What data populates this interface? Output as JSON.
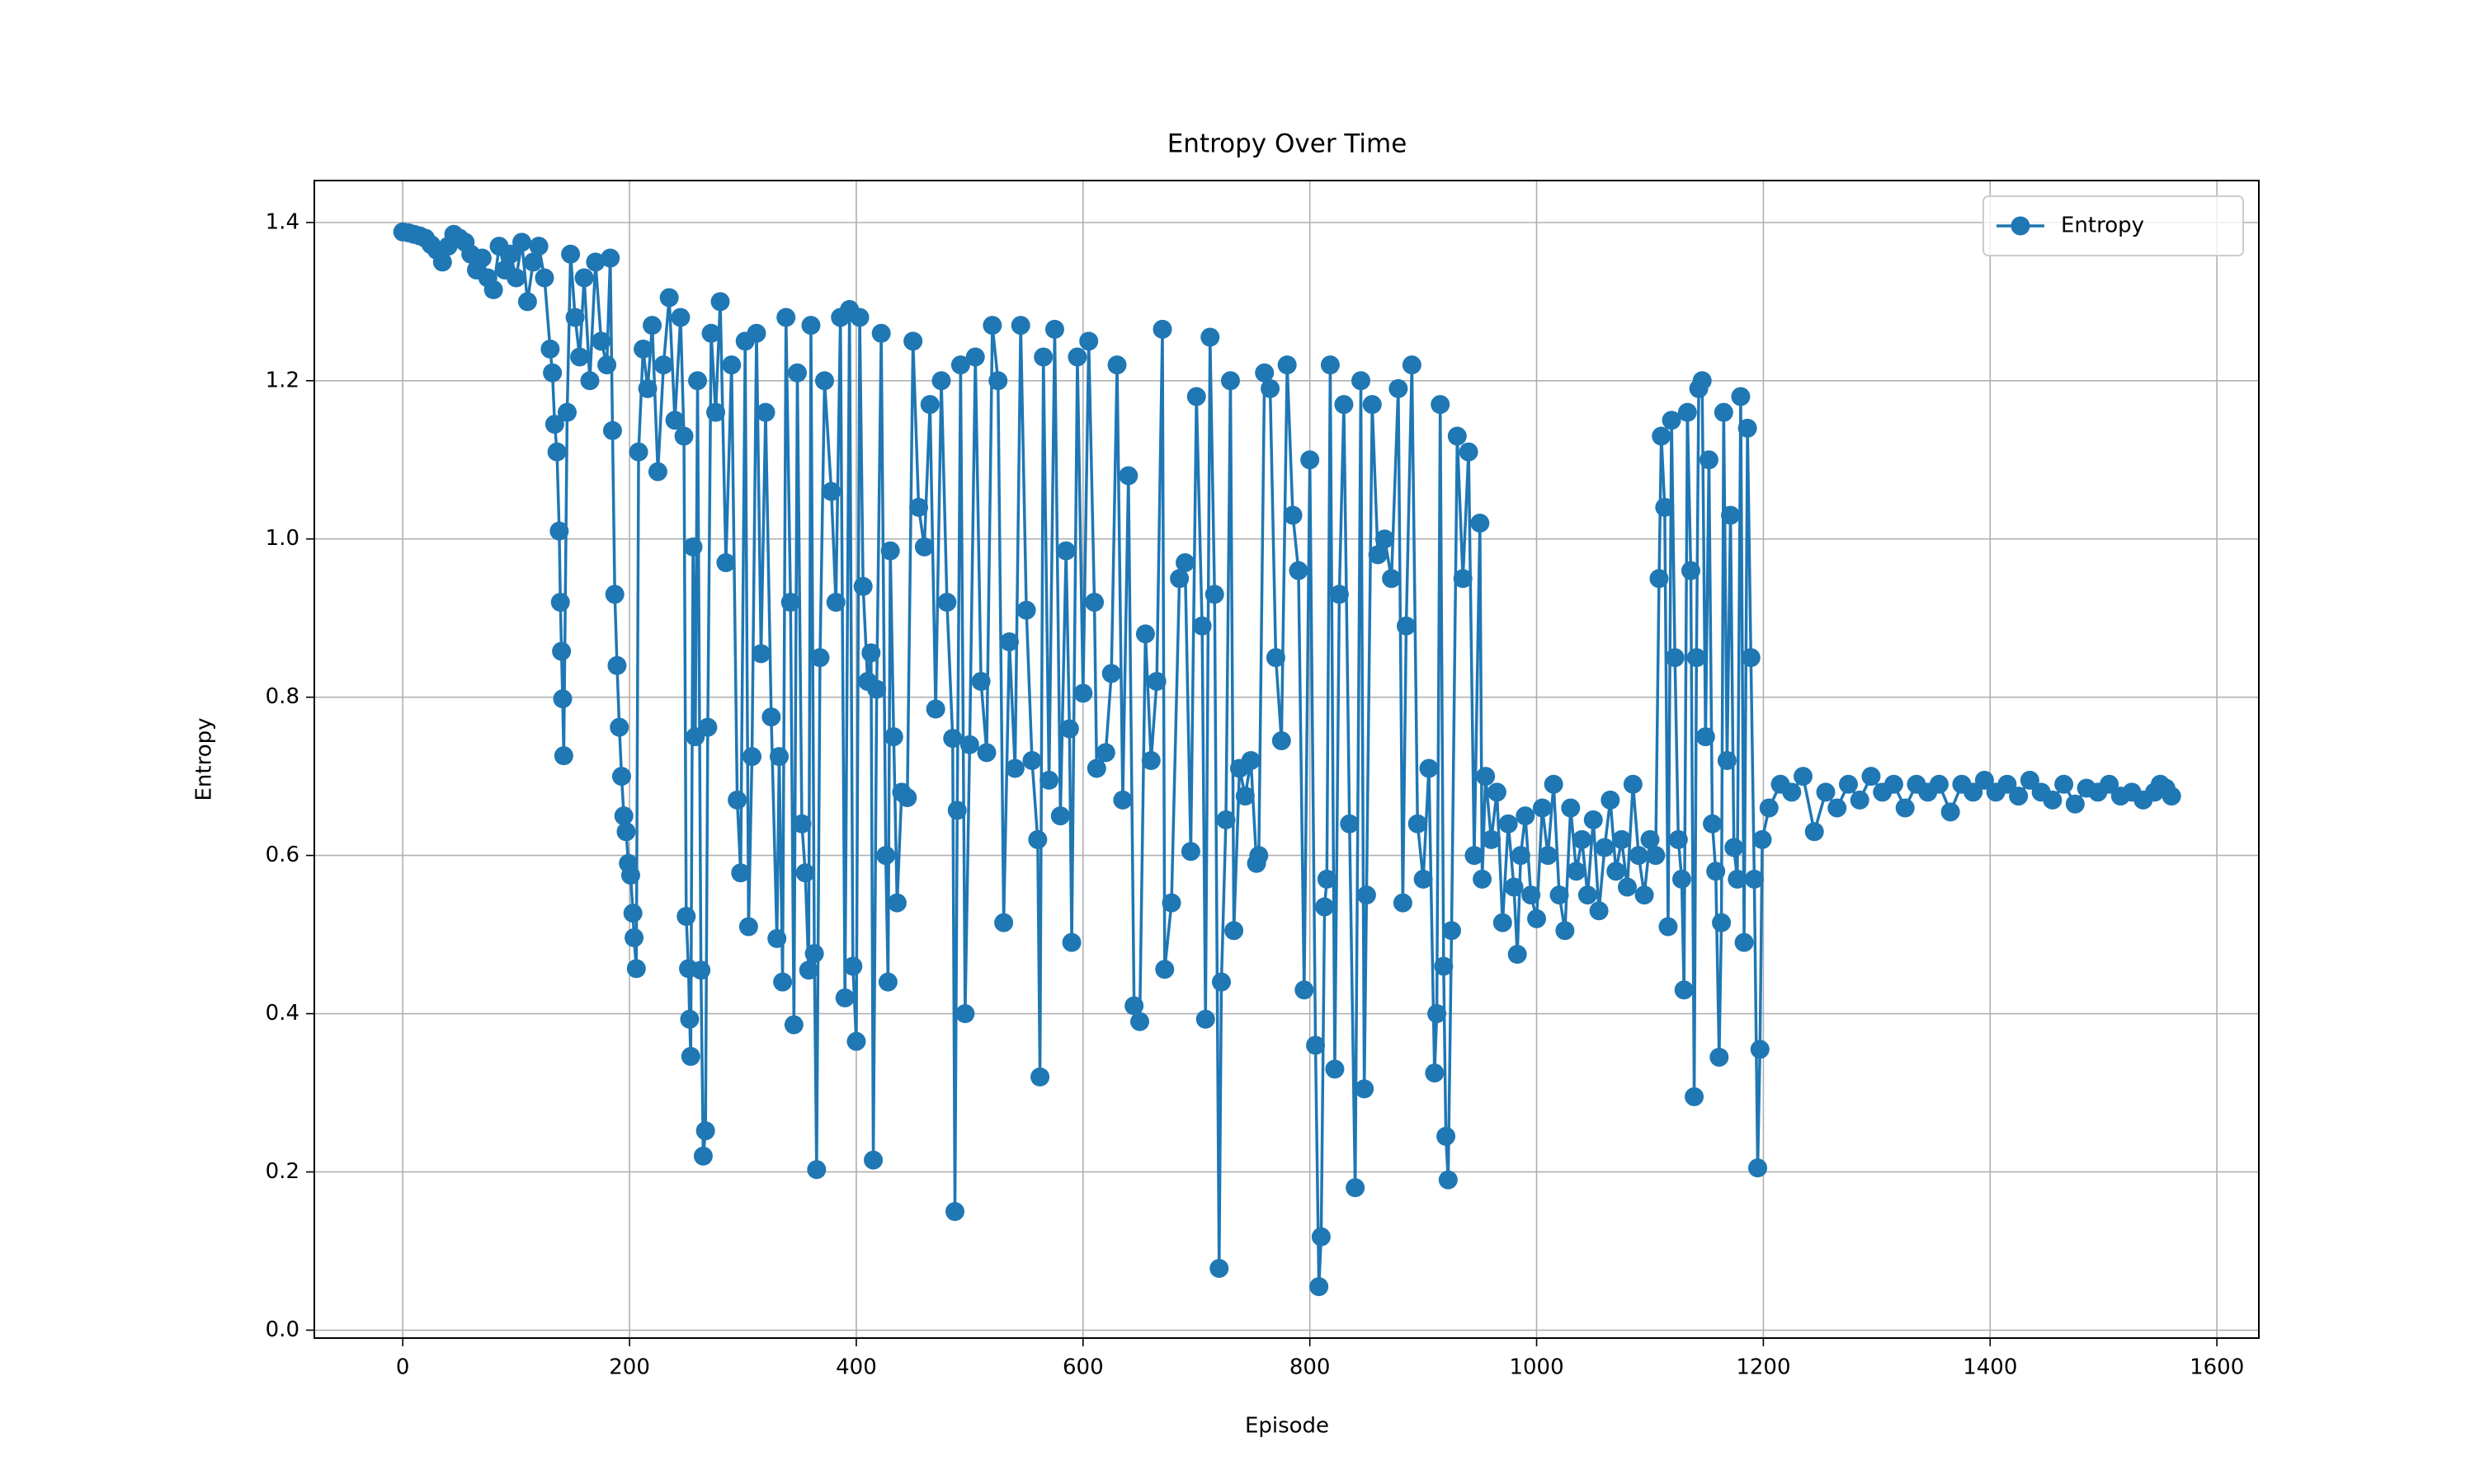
{
  "chart_data": {
    "type": "line",
    "title": "Entropy Over Time",
    "x_label": "Episode",
    "y_label": "Entropy",
    "x": [
      0,
      5,
      10,
      15,
      20,
      25,
      30,
      35,
      40,
      45,
      50,
      55,
      60,
      65,
      70,
      75,
      80,
      85,
      90,
      95,
      100,
      105,
      110,
      115,
      120,
      125,
      130,
      132,
      134,
      136,
      138,
      139,
      140,
      141,
      142,
      145,
      148,
      152,
      156,
      160,
      165,
      170,
      175,
      180,
      183,
      185,
      187,
      189,
      191,
      193,
      195,
      197,
      199,
      201,
      203,
      204,
      206,
      208,
      212,
      216,
      220,
      225,
      230,
      235,
      240,
      245,
      248,
      250,
      252,
      253,
      254,
      256,
      258,
      260,
      263,
      265,
      267,
      269,
      272,
      276,
      280,
      285,
      290,
      295,
      298,
      302,
      305,
      308,
      312,
      316,
      320,
      325,
      330,
      332,
      335,
      338,
      342,
      345,
      348,
      352,
      355,
      358,
      360,
      363,
      365,
      368,
      372,
      378,
      382,
      386,
      390,
      394,
      397,
      400,
      403,
      406,
      410,
      413,
      415,
      418,
      422,
      426,
      428,
      430,
      433,
      436,
      440,
      445,
      450,
      455,
      460,
      465,
      470,
      475,
      480,
      485,
      487,
      489,
      492,
      496,
      500,
      505,
      510,
      515,
      520,
      525,
      530,
      535,
      540,
      545,
      550,
      555,
      560,
      562,
      565,
      570,
      575,
      580,
      585,
      588,
      590,
      595,
      600,
      605,
      610,
      612,
      620,
      625,
      630,
      635,
      640,
      645,
      650,
      655,
      660,
      665,
      670,
      672,
      678,
      685,
      690,
      695,
      700,
      705,
      708,
      712,
      716,
      720,
      722,
      726,
      730,
      733,
      738,
      743,
      748,
      753,
      755,
      760,
      765,
      770,
      775,
      780,
      785,
      790,
      795,
      800,
      805,
      808,
      810,
      813,
      815,
      818,
      822,
      826,
      830,
      835,
      840,
      845,
      848,
      850,
      855,
      860,
      866,
      872,
      878,
      882,
      885,
      890,
      895,
      900,
      905,
      910,
      912,
      915,
      918,
      920,
      922,
      925,
      930,
      935,
      940,
      945,
      950,
      952,
      955,
      960,
      965,
      970,
      975,
      980,
      983,
      986,
      990,
      995,
      1000,
      1005,
      1010,
      1015,
      1020,
      1025,
      1030,
      1035,
      1040,
      1045,
      1050,
      1055,
      1060,
      1065,
      1070,
      1075,
      1080,
      1085,
      1090,
      1095,
      1100,
      1105,
      1108,
      1110,
      1113,
      1116,
      1119,
      1122,
      1125,
      1128,
      1130,
      1133,
      1136,
      1139,
      1141,
      1143,
      1146,
      1149,
      1152,
      1155,
      1158,
      1161,
      1163,
      1165,
      1168,
      1171,
      1174,
      1177,
      1180,
      1183,
      1186,
      1189,
      1192,
      1195,
      1197,
      1199,
      1205,
      1215,
      1225,
      1235,
      1245,
      1255,
      1265,
      1275,
      1285,
      1295,
      1305,
      1315,
      1325,
      1335,
      1345,
      1355,
      1365,
      1375,
      1385,
      1395,
      1405,
      1415,
      1425,
      1435,
      1445,
      1455,
      1465,
      1475,
      1485,
      1495,
      1505,
      1515,
      1525,
      1535,
      1545,
      1550,
      1555,
      1560
    ],
    "series": [
      {
        "name": "Entropy",
        "color": "#1f77b4",
        "values": [
          1.388,
          1.387,
          1.385,
          1.383,
          1.38,
          1.372,
          1.365,
          1.35,
          1.37,
          1.385,
          1.38,
          1.375,
          1.36,
          1.34,
          1.355,
          1.33,
          1.315,
          1.37,
          1.34,
          1.36,
          1.33,
          1.375,
          1.3,
          1.35,
          1.37,
          1.33,
          1.24,
          1.21,
          1.145,
          1.11,
          1.01,
          0.92,
          0.858,
          0.798,
          0.726,
          1.16,
          1.36,
          1.28,
          1.23,
          1.33,
          1.2,
          1.35,
          1.25,
          1.22,
          1.355,
          1.137,
          0.93,
          0.84,
          0.762,
          0.7,
          0.65,
          0.63,
          0.59,
          0.575,
          0.527,
          0.496,
          0.457,
          1.11,
          1.24,
          1.19,
          1.27,
          1.085,
          1.22,
          1.305,
          1.15,
          1.28,
          1.13,
          0.523,
          0.457,
          0.393,
          0.346,
          0.99,
          0.75,
          1.2,
          0.455,
          0.22,
          0.252,
          0.762,
          1.26,
          1.16,
          1.3,
          0.97,
          1.22,
          0.67,
          0.578,
          1.25,
          0.51,
          0.725,
          1.26,
          0.855,
          1.16,
          0.775,
          0.495,
          0.725,
          0.44,
          1.28,
          0.92,
          0.386,
          1.21,
          0.64,
          0.578,
          0.455,
          1.27,
          0.476,
          0.203,
          0.85,
          1.2,
          1.06,
          0.92,
          1.28,
          0.42,
          1.29,
          0.46,
          0.365,
          1.28,
          0.94,
          0.82,
          0.856,
          0.215,
          0.81,
          1.26,
          0.6,
          0.44,
          0.985,
          0.75,
          0.54,
          0.68,
          0.673,
          1.25,
          1.04,
          0.99,
          1.17,
          0.785,
          1.2,
          0.92,
          0.748,
          0.15,
          0.657,
          1.22,
          0.4,
          0.74,
          1.23,
          0.82,
          0.73,
          1.27,
          1.2,
          0.515,
          0.87,
          0.71,
          1.27,
          0.91,
          0.72,
          0.62,
          0.32,
          1.23,
          0.695,
          1.265,
          0.65,
          0.985,
          0.76,
          0.49,
          1.23,
          0.805,
          1.25,
          0.92,
          0.71,
          0.73,
          0.83,
          1.22,
          0.67,
          1.08,
          0.41,
          0.39,
          0.88,
          0.72,
          0.82,
          1.265,
          0.456,
          0.54,
          0.95,
          0.97,
          0.605,
          1.18,
          0.89,
          0.393,
          1.255,
          0.93,
          0.078,
          0.44,
          0.645,
          1.2,
          0.505,
          0.71,
          0.675,
          0.72,
          0.59,
          0.6,
          1.21,
          1.19,
          0.85,
          0.745,
          1.22,
          1.03,
          0.96,
          0.43,
          1.1,
          0.36,
          0.055,
          0.118,
          0.535,
          0.57,
          1.22,
          0.33,
          0.93,
          1.17,
          0.64,
          0.18,
          1.2,
          0.305,
          0.55,
          1.17,
          0.98,
          1.0,
          0.95,
          1.19,
          0.54,
          0.89,
          1.22,
          0.64,
          0.57,
          0.71,
          0.325,
          0.4,
          1.17,
          0.46,
          0.245,
          0.19,
          0.505,
          1.13,
          0.95,
          1.11,
          0.6,
          1.02,
          0.57,
          0.7,
          0.62,
          0.68,
          0.515,
          0.64,
          0.56,
          0.475,
          0.6,
          0.65,
          0.55,
          0.52,
          0.66,
          0.6,
          0.69,
          0.55,
          0.505,
          0.66,
          0.58,
          0.62,
          0.55,
          0.645,
          0.53,
          0.61,
          0.67,
          0.58,
          0.62,
          0.56,
          0.69,
          0.6,
          0.55,
          0.62,
          0.6,
          0.95,
          1.13,
          1.04,
          0.51,
          1.15,
          0.85,
          0.62,
          0.57,
          0.43,
          1.16,
          0.96,
          0.295,
          0.85,
          1.19,
          1.2,
          0.75,
          1.1,
          0.64,
          0.58,
          0.345,
          0.515,
          1.16,
          0.72,
          1.03,
          0.61,
          0.57,
          1.18,
          0.49,
          1.14,
          0.85,
          0.57,
          0.205,
          0.355,
          0.62,
          0.66,
          0.69,
          0.68,
          0.7,
          0.63,
          0.68,
          0.66,
          0.69,
          0.67,
          0.7,
          0.68,
          0.69,
          0.66,
          0.69,
          0.68,
          0.69,
          0.655,
          0.69,
          0.68,
          0.695,
          0.68,
          0.69,
          0.675,
          0.695,
          0.68,
          0.67,
          0.69,
          0.665,
          0.685,
          0.68,
          0.69,
          0.675,
          0.68,
          0.67,
          0.68,
          0.69,
          0.685,
          0.675
        ]
      }
    ],
    "xlim": [
      -78,
      1637
    ],
    "ylim": [
      -0.01,
      1.453
    ],
    "xticks": [
      0,
      200,
      400,
      600,
      800,
      1000,
      1200,
      1400,
      1600
    ],
    "yticks": [
      {
        "value": 0,
        "label": "0.0"
      },
      0.2,
      0.4,
      0.6,
      0.8,
      {
        "value": 1,
        "label": "1.0"
      },
      1.2,
      1.4
    ],
    "grid": true,
    "legend": "upper right"
  }
}
